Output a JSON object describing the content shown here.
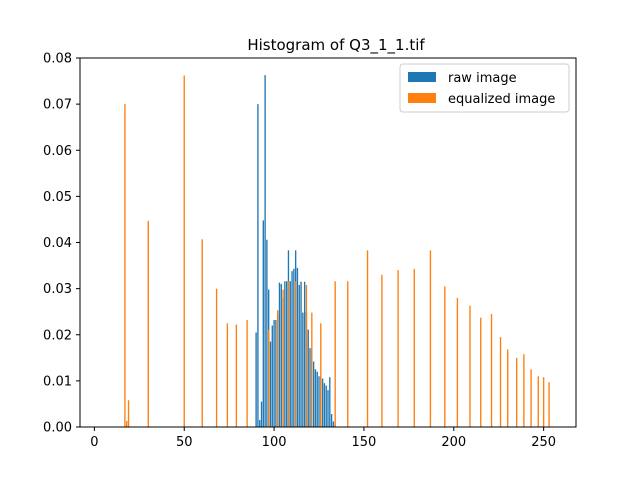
{
  "chart_data": {
    "type": "bar",
    "title": "Histogram of Q3_1_1.tif",
    "xlim": [
      -8,
      268
    ],
    "ylim": [
      0,
      0.08
    ],
    "x_ticks": [
      0,
      50,
      100,
      150,
      200,
      250
    ],
    "y_ticks": [
      "0.00",
      "0.01",
      "0.02",
      "0.03",
      "0.04",
      "0.05",
      "0.06",
      "0.07",
      "0.08"
    ],
    "grid": false,
    "legend_position": "top-right",
    "series": [
      {
        "name": "raw image",
        "color": "#1f77b4",
        "x": [
          90,
          91,
          92,
          93,
          94,
          95,
          96,
          97,
          98,
          99,
          100,
          101,
          102,
          103,
          104,
          105,
          106,
          107,
          108,
          109,
          110,
          111,
          112,
          113,
          114,
          115,
          116,
          117,
          118,
          119,
          120,
          121,
          122,
          123,
          124,
          125,
          126,
          127,
          128,
          129,
          130,
          131,
          132,
          133,
          134
        ],
        "values": [
          0.0205,
          0.07,
          0.0015,
          0.0055,
          0.0448,
          0.0763,
          0.0406,
          0.0298,
          0.0185,
          0.022,
          0.0232,
          0.0232,
          0.0245,
          0.0313,
          0.031,
          0.028,
          0.0316,
          0.0316,
          0.0383,
          0.0316,
          0.0338,
          0.0343,
          0.0383,
          0.0345,
          0.0308,
          0.0315,
          0.0248,
          0.0315,
          0.025,
          0.0211,
          0.0171,
          0.0171,
          0.0142,
          0.0125,
          0.012,
          0.011,
          0.011,
          0.0105,
          0.0095,
          0.009,
          0.008,
          0.0108,
          0.0028,
          0.0012,
          0.0005
        ]
      },
      {
        "name": "equalized image",
        "color": "#ff7f0e",
        "x": [
          17,
          18,
          19,
          30,
          50,
          60,
          68,
          74,
          79,
          85,
          97,
          102,
          105,
          108,
          112,
          118,
          121,
          126,
          134,
          141,
          152,
          160,
          169,
          178,
          187,
          195,
          202,
          209,
          215,
          221,
          226,
          230,
          235,
          239,
          243,
          247,
          250,
          253
        ],
        "values": [
          0.07,
          0.0013,
          0.0058,
          0.0447,
          0.0762,
          0.0407,
          0.03,
          0.0225,
          0.0222,
          0.0232,
          0.0211,
          0.0253,
          0.0298,
          0.0316,
          0.0316,
          0.0308,
          0.0248,
          0.0225,
          0.0316,
          0.0316,
          0.0383,
          0.033,
          0.034,
          0.0343,
          0.0383,
          0.0305,
          0.028,
          0.0263,
          0.0237,
          0.0245,
          0.0195,
          0.0168,
          0.015,
          0.0158,
          0.0125,
          0.011,
          0.0108,
          0.0097
        ]
      }
    ]
  }
}
